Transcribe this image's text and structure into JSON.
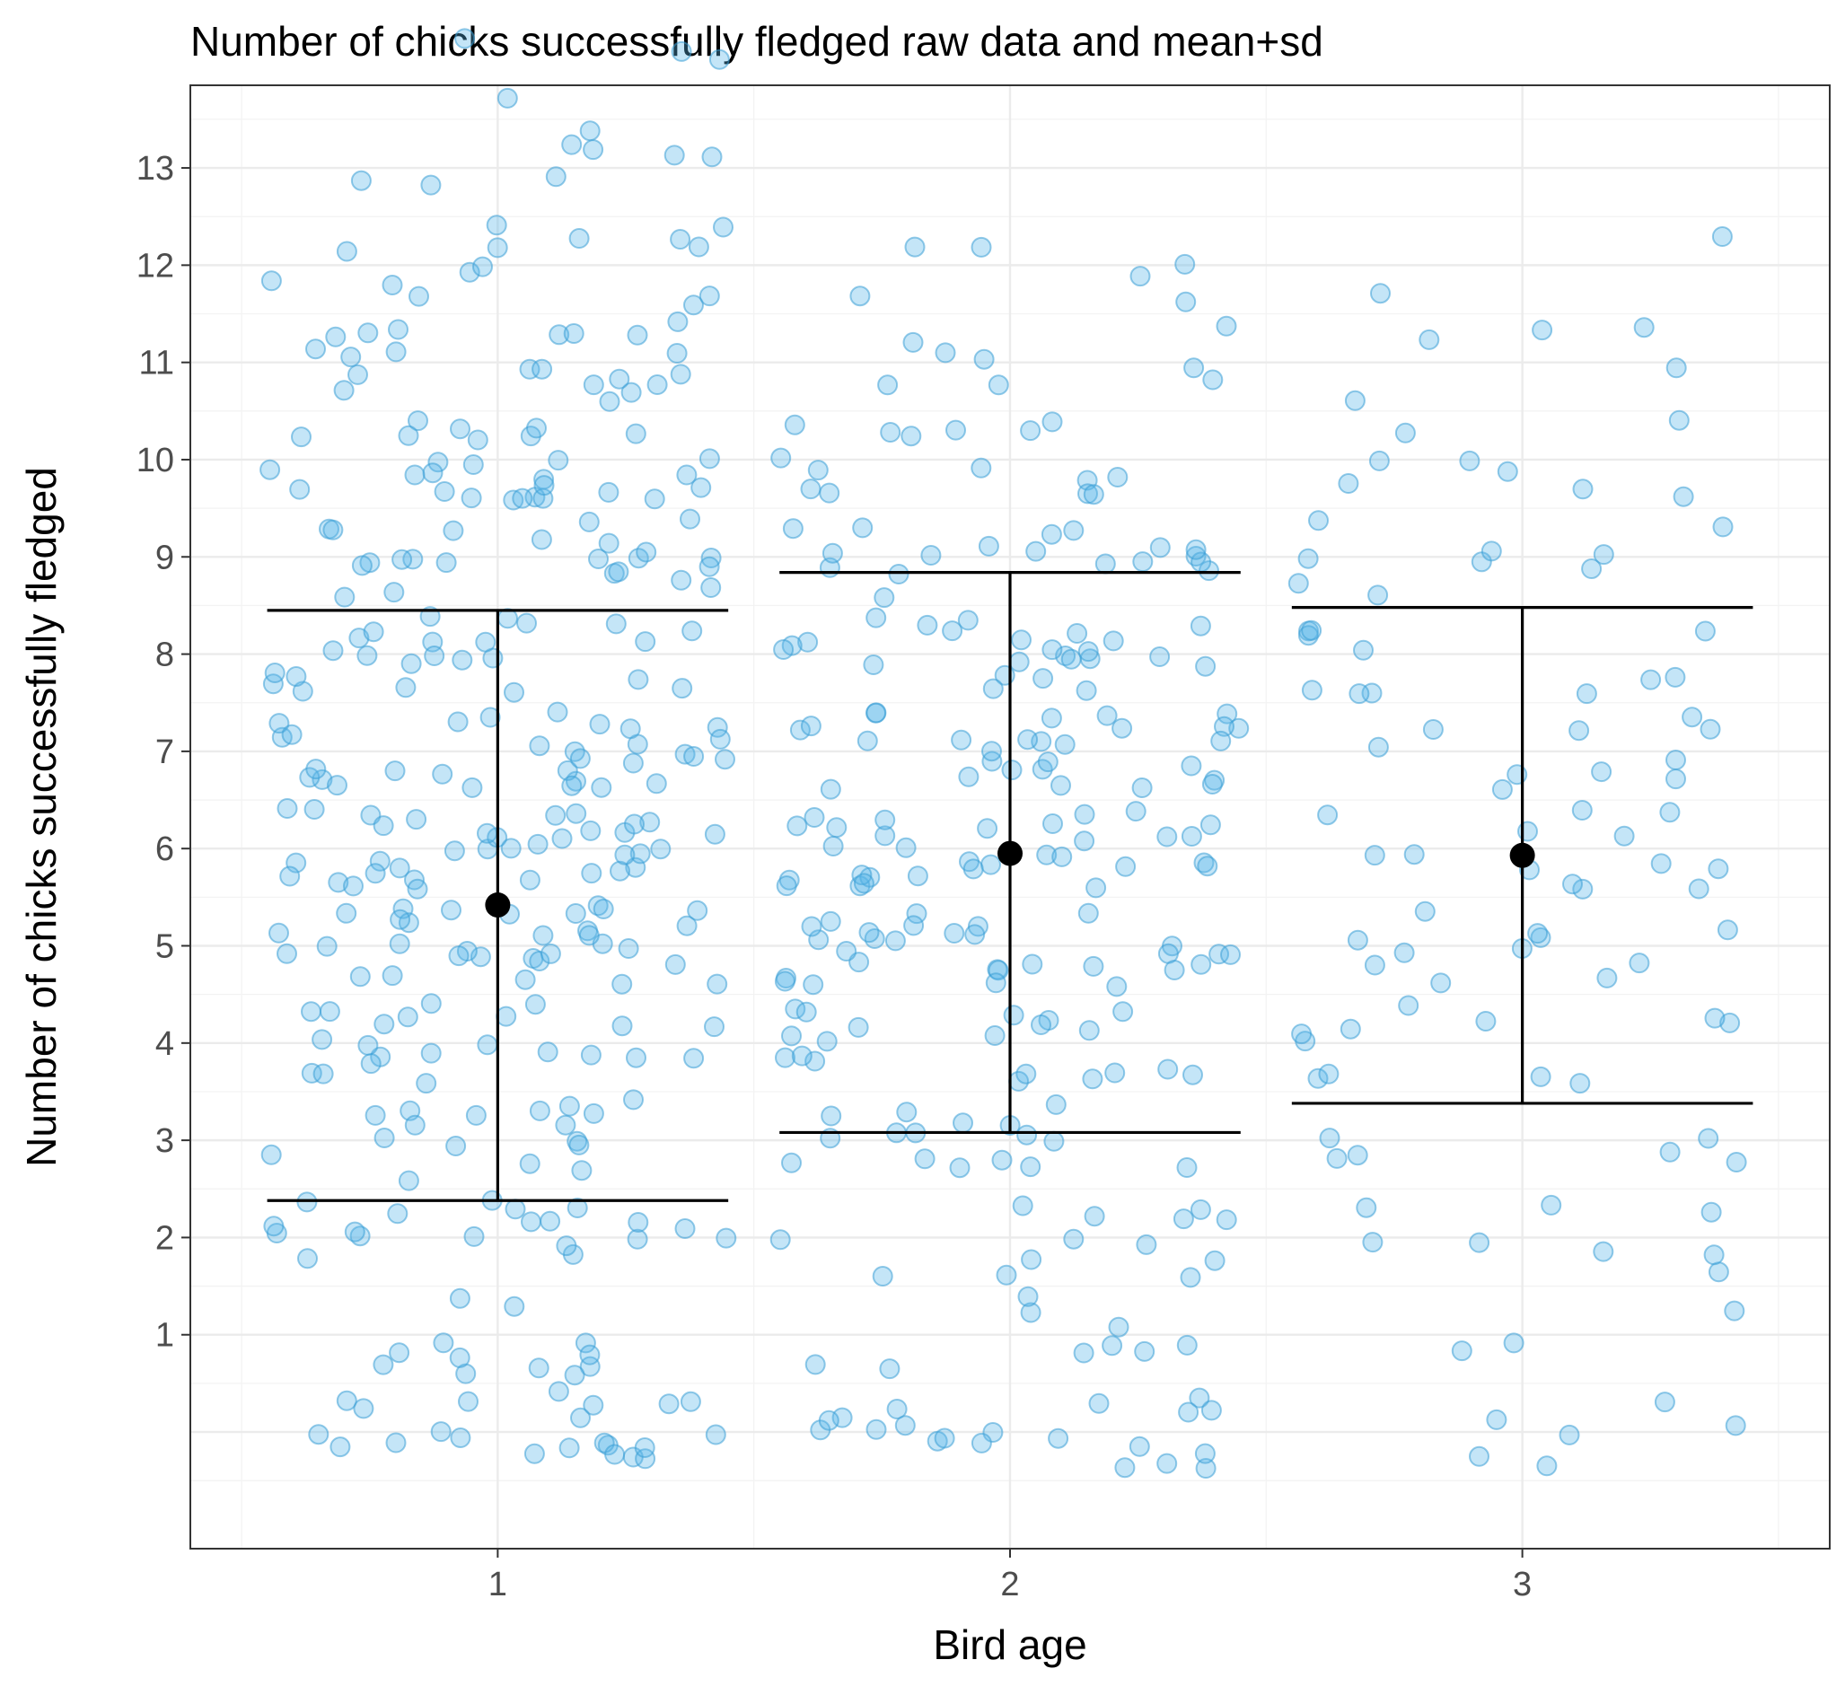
{
  "chart_data": {
    "type": "scatter",
    "title": "Number of chicks successfully fledged raw data and mean+sd",
    "xlabel": "Bird age",
    "ylabel": "Number of chicks successfully fledged",
    "x_categories": [
      "1",
      "2",
      "3"
    ],
    "y_ticks": [
      1,
      2,
      3,
      4,
      5,
      6,
      7,
      8,
      9,
      10,
      11,
      12,
      13
    ],
    "y_tick_labels": [
      "1",
      "2",
      "3",
      "4",
      "5",
      "6",
      "7",
      "8",
      "9",
      "10",
      "11",
      "12",
      "13"
    ],
    "xlim": [
      0.4,
      3.6
    ],
    "ylim": [
      -1.2,
      13.85
    ],
    "jitter_width": 0.45,
    "grid": true,
    "colors": {
      "points": "#56B4E9",
      "summary": "#000000",
      "grid": "#ebebeb",
      "panel_border": "#333333"
    },
    "summary": [
      {
        "group": "1",
        "mean": 5.42,
        "lower": 2.38,
        "upper": 8.45
      },
      {
        "group": "2",
        "mean": 5.95,
        "lower": 3.08,
        "upper": 8.84
      },
      {
        "group": "3",
        "mean": 5.93,
        "lower": 3.38,
        "upper": 8.48
      }
    ],
    "raw_data": [
      {
        "group": "1",
        "counts": [
          22,
          12,
          19,
          17,
          22,
          32,
          35,
          30,
          24,
          23,
          28,
          21,
          14,
          8,
          4,
          0
        ]
      },
      {
        "group": "2",
        "counts": [
          20,
          9,
          13,
          16,
          20,
          29,
          31,
          28,
          24,
          18,
          15,
          8,
          6,
          0,
          0,
          0
        ]
      },
      {
        "group": "3",
        "counts": [
          6,
          3,
          8,
          6,
          11,
          11,
          13,
          10,
          11,
          9,
          8,
          5,
          2,
          0,
          0,
          0
        ]
      }
    ]
  }
}
